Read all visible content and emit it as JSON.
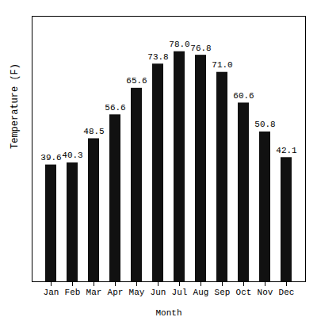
{
  "chart_data": {
    "type": "bar",
    "categories": [
      "Jan",
      "Feb",
      "Mar",
      "Apr",
      "May",
      "Jun",
      "Jul",
      "Aug",
      "Sep",
      "Oct",
      "Nov",
      "Dec"
    ],
    "values": [
      39.6,
      40.3,
      48.5,
      56.6,
      65.6,
      73.8,
      78.0,
      76.8,
      71.0,
      60.6,
      50.8,
      42.1
    ],
    "value_labels": [
      "39.6",
      "40.3",
      "48.5",
      "56.6",
      "65.6",
      "73.8",
      "78.0",
      "76.8",
      "71.0",
      "60.6",
      "50.8",
      "42.1"
    ],
    "data_labels": true,
    "color": "#111111",
    "xlabel": "Month",
    "ylabel": "Temperature (F)",
    "ylim": [
      0,
      90
    ],
    "yticks": [],
    "tick_labels": "x",
    "grid": false
  }
}
